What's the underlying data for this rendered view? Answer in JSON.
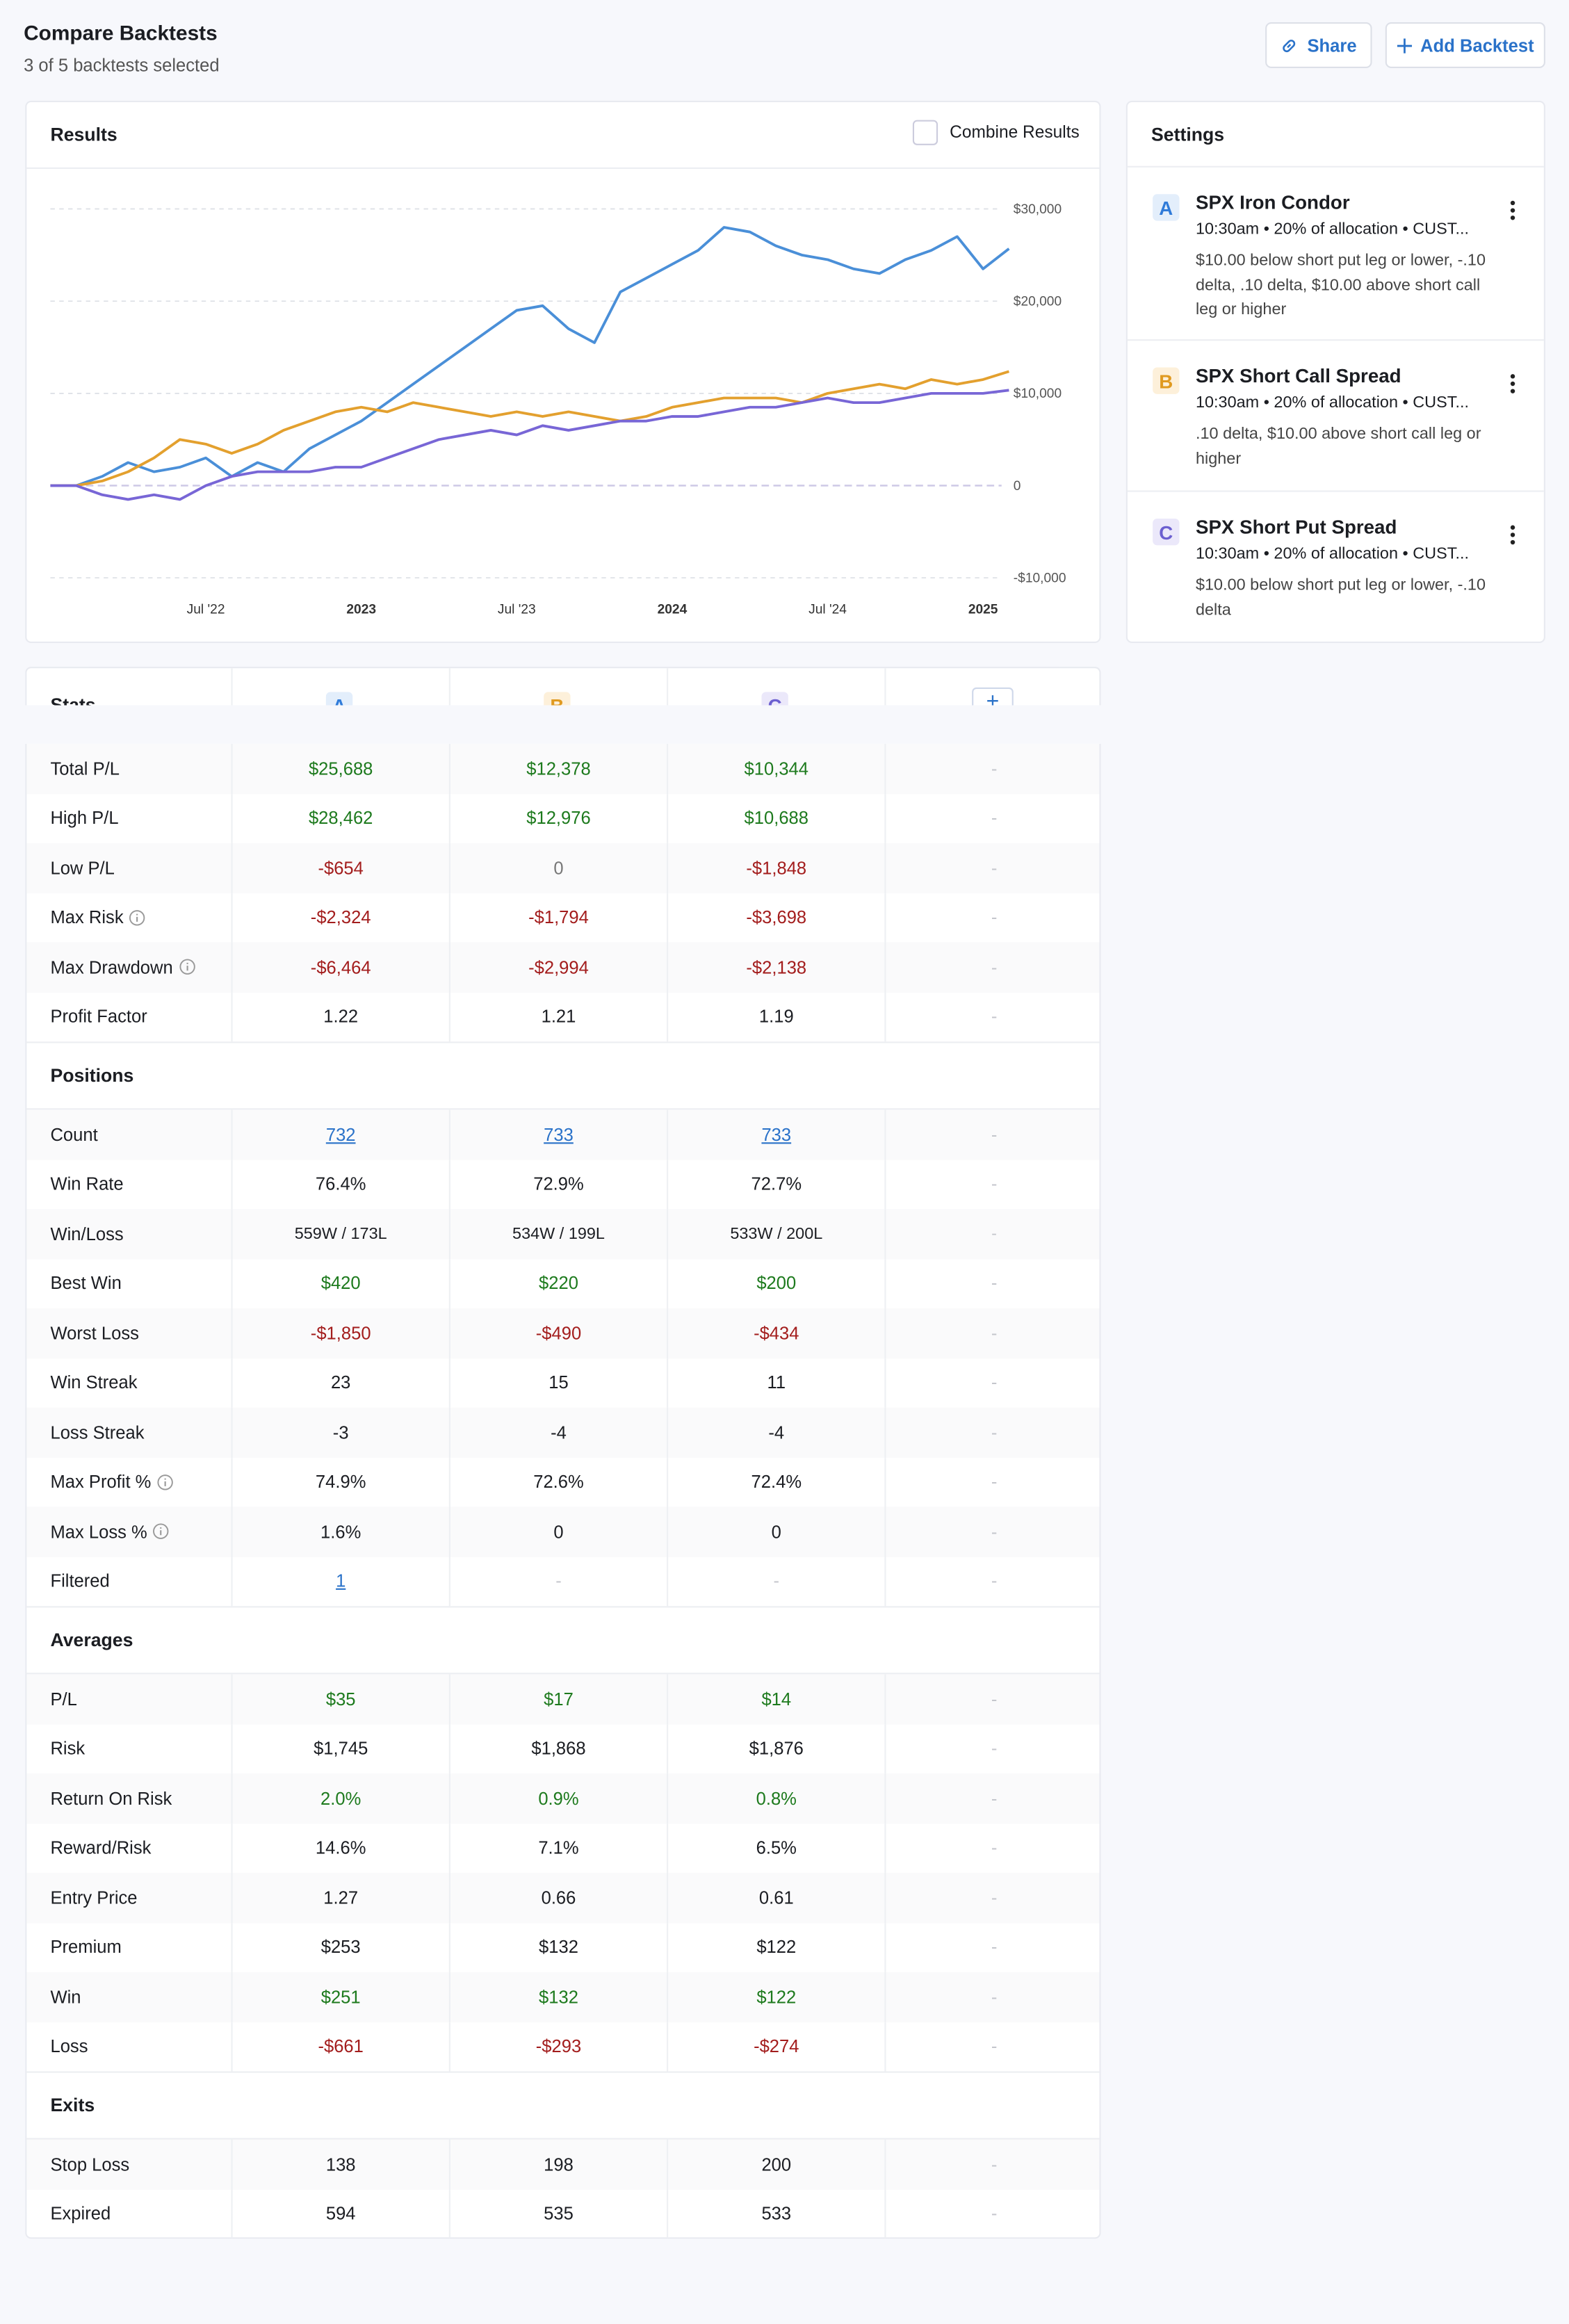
{
  "header": {
    "title": "Compare Backtests",
    "subtitle": "3 of 5 backtests selected",
    "buttons": [
      "Share",
      "Add Backtest"
    ]
  },
  "results": {
    "title": "Results",
    "combine_label": "Combine Results",
    "chart": {
      "type": "line",
      "x": [
        "2022-01",
        "2022-02",
        "2022-03",
        "2022-04",
        "2022-05",
        "2022-06",
        "2022-07",
        "2022-08",
        "2022-09",
        "2022-10",
        "2022-11",
        "2022-12",
        "2023-01",
        "2023-02",
        "2023-03",
        "2023-04",
        "2023-05",
        "2023-06",
        "2023-07",
        "2023-08",
        "2023-09",
        "2023-10",
        "2023-11",
        "2023-12",
        "2024-01",
        "2024-02",
        "2024-03",
        "2024-04",
        "2024-05",
        "2024-06",
        "2024-07",
        "2024-08",
        "2024-09",
        "2024-10",
        "2024-11",
        "2024-12",
        "2025-01",
        "2025-02"
      ],
      "xlim": [
        "2022-01",
        "2025-02"
      ],
      "xticks": [
        {
          "value": "2022-07",
          "label": "Jul '22"
        },
        {
          "value": "2023-01",
          "label": "2023"
        },
        {
          "value": "2023-07",
          "label": "Jul '23"
        },
        {
          "value": "2024-01",
          "label": "2024"
        },
        {
          "value": "2024-07",
          "label": "Jul '24"
        },
        {
          "value": "2025-01",
          "label": "2025"
        }
      ],
      "ylim": [
        -10000,
        30000
      ],
      "yticks": [
        {
          "value": -10000,
          "label": "-$10,000"
        },
        0,
        {
          "value": 10000,
          "label": "$10,000"
        },
        {
          "value": 20000,
          "label": "$20,000"
        },
        {
          "value": 30000,
          "label": "$30,000"
        }
      ],
      "grid": true,
      "series": [
        {
          "color": "#4a8fd8",
          "values": [
            0,
            0,
            1000,
            2500,
            1500,
            2000,
            3000,
            1000,
            2500,
            1500,
            4000,
            5500,
            7000,
            9000,
            11000,
            13000,
            15000,
            17000,
            19000,
            19500,
            17000,
            15500,
            21000,
            22500,
            24000,
            25500,
            28000,
            27500,
            26000,
            25000,
            24500,
            23500,
            23000,
            24500,
            25500,
            27000,
            23500,
            25688
          ]
        },
        {
          "color": "#e3a02e",
          "values": [
            0,
            0,
            500,
            1500,
            3000,
            5000,
            4500,
            3500,
            4500,
            6000,
            7000,
            8000,
            8500,
            8000,
            9000,
            8500,
            8000,
            7500,
            8000,
            7500,
            8000,
            7500,
            7000,
            7500,
            8500,
            9000,
            9500,
            9500,
            9500,
            9000,
            10000,
            10500,
            11000,
            10500,
            11500,
            11000,
            11500,
            12378
          ]
        },
        {
          "color": "#7866d6",
          "values": [
            0,
            0,
            -1000,
            -1500,
            -1000,
            -1500,
            0,
            1000,
            1500,
            1500,
            1500,
            2000,
            2000,
            3000,
            4000,
            5000,
            5500,
            6000,
            5500,
            6500,
            6000,
            6500,
            7000,
            7000,
            7500,
            7500,
            8000,
            8500,
            8500,
            9000,
            9500,
            9000,
            9000,
            9500,
            10000,
            10000,
            10000,
            10344
          ]
        }
      ]
    }
  },
  "settings": {
    "title": "Settings",
    "items": [
      {
        "letter": "A",
        "color": "#2f7bd9",
        "background": "#e3eefb",
        "name": "SPX Iron Condor",
        "summary": "10:30am • 20% of allocation • CUST...",
        "details": "$10.00 below short put leg or lower, -.10 delta, .10 delta, $10.00 above short call leg or higher"
      },
      {
        "letter": "B",
        "color": "#e09a20",
        "background": "#fdf0da",
        "name": "SPX Short Call Spread",
        "summary": "10:30am • 20% of allocation • CUST...",
        "details": ".10 delta, $10.00 above short call leg or higher"
      },
      {
        "letter": "C",
        "color": "#6b5fd0",
        "background": "#ebe8fa",
        "name": "SPX Short Put Spread",
        "summary": "10:30am • 20% of allocation • CUST...",
        "details": "$10.00 below short put leg or lower, -.10 delta"
      }
    ]
  },
  "stats": {
    "title": "Stats",
    "add": "+",
    "sections": [
      {
        "rows": [
          {
            "label": "Total P/L",
            "style": "pnl",
            "cells": [
              "$25,688",
              "$12,378",
              "$10,344",
              "-"
            ]
          },
          {
            "label": "High P/L",
            "style": "pnl",
            "cells": [
              "$28,462",
              "$12,976",
              "$10,688",
              "-"
            ]
          },
          {
            "label": "Low P/L",
            "style": "pnl",
            "cells": [
              "-$654",
              "0",
              "-$1,848",
              "-"
            ]
          },
          {
            "label": "Max Risk",
            "style": "pnl",
            "info": true,
            "cells": [
              "-$2,324",
              "-$1,794",
              "-$3,698",
              "-"
            ]
          },
          {
            "label": "Max Drawdown",
            "style": "pnl",
            "info": true,
            "cells": [
              "-$6,464",
              "-$2,994",
              "-$2,138",
              "-"
            ]
          },
          {
            "label": "Profit Factor",
            "cells": [
              "1.22",
              "1.21",
              "1.19",
              "-"
            ]
          }
        ]
      },
      {
        "title": "Positions",
        "rows": [
          {
            "label": "Count",
            "style": "link",
            "cells": [
              "732",
              "733",
              "733",
              "-"
            ]
          },
          {
            "label": "Win Rate",
            "cells": [
              "76.4%",
              "72.9%",
              "72.7%",
              "-"
            ]
          },
          {
            "label": "Win/Loss",
            "style": "small",
            "cells": [
              "559W / 173L",
              "534W / 199L",
              "533W / 200L",
              "-"
            ]
          },
          {
            "label": "Best Win",
            "style": "pnl",
            "cells": [
              "$420",
              "$220",
              "$200",
              "-"
            ]
          },
          {
            "label": "Worst Loss",
            "style": "pnl",
            "cells": [
              "-$1,850",
              "-$490",
              "-$434",
              "-"
            ]
          },
          {
            "label": "Win Streak",
            "cells": [
              "23",
              "15",
              "11",
              "-"
            ]
          },
          {
            "label": "Loss Streak",
            "cells": [
              "-3",
              "-4",
              "-4",
              "-"
            ]
          },
          {
            "label": "Max Profit %",
            "info": true,
            "cells": [
              "74.9%",
              "72.6%",
              "72.4%",
              "-"
            ]
          },
          {
            "label": "Max Loss %",
            "info": true,
            "cells": [
              "1.6%",
              "0",
              "0",
              "-"
            ]
          },
          {
            "label": "Filtered",
            "style": "link",
            "cells": [
              "1",
              "-",
              "-",
              "-"
            ]
          }
        ]
      },
      {
        "title": "Averages",
        "rows": [
          {
            "label": "P/L",
            "style": "pnl",
            "cells": [
              "$35",
              "$17",
              "$14",
              "-"
            ]
          },
          {
            "label": "Risk",
            "cells": [
              "$1,745",
              "$1,868",
              "$1,876",
              "-"
            ]
          },
          {
            "label": "Return On Risk",
            "style": "pnl",
            "cells": [
              "2.0%",
              "0.9%",
              "0.8%",
              "-"
            ]
          },
          {
            "label": "Reward/Risk",
            "cells": [
              "14.6%",
              "7.1%",
              "6.5%",
              "-"
            ]
          },
          {
            "label": "Entry Price",
            "cells": [
              "1.27",
              "0.66",
              "0.61",
              "-"
            ]
          },
          {
            "label": "Premium",
            "cells": [
              "$253",
              "$132",
              "$122",
              "-"
            ]
          },
          {
            "label": "Win",
            "style": "pnl",
            "cells": [
              "$251",
              "$132",
              "$122",
              "-"
            ]
          },
          {
            "label": "Loss",
            "style": "pnl",
            "cells": [
              "-$661",
              "-$293",
              "-$274",
              "-"
            ]
          }
        ]
      },
      {
        "title": "Exits",
        "rows": [
          {
            "label": "Stop Loss",
            "cells": [
              "138",
              "198",
              "200",
              "-"
            ]
          },
          {
            "label": "Expired",
            "cells": [
              "594",
              "535",
              "533",
              "-"
            ]
          }
        ]
      }
    ]
  }
}
